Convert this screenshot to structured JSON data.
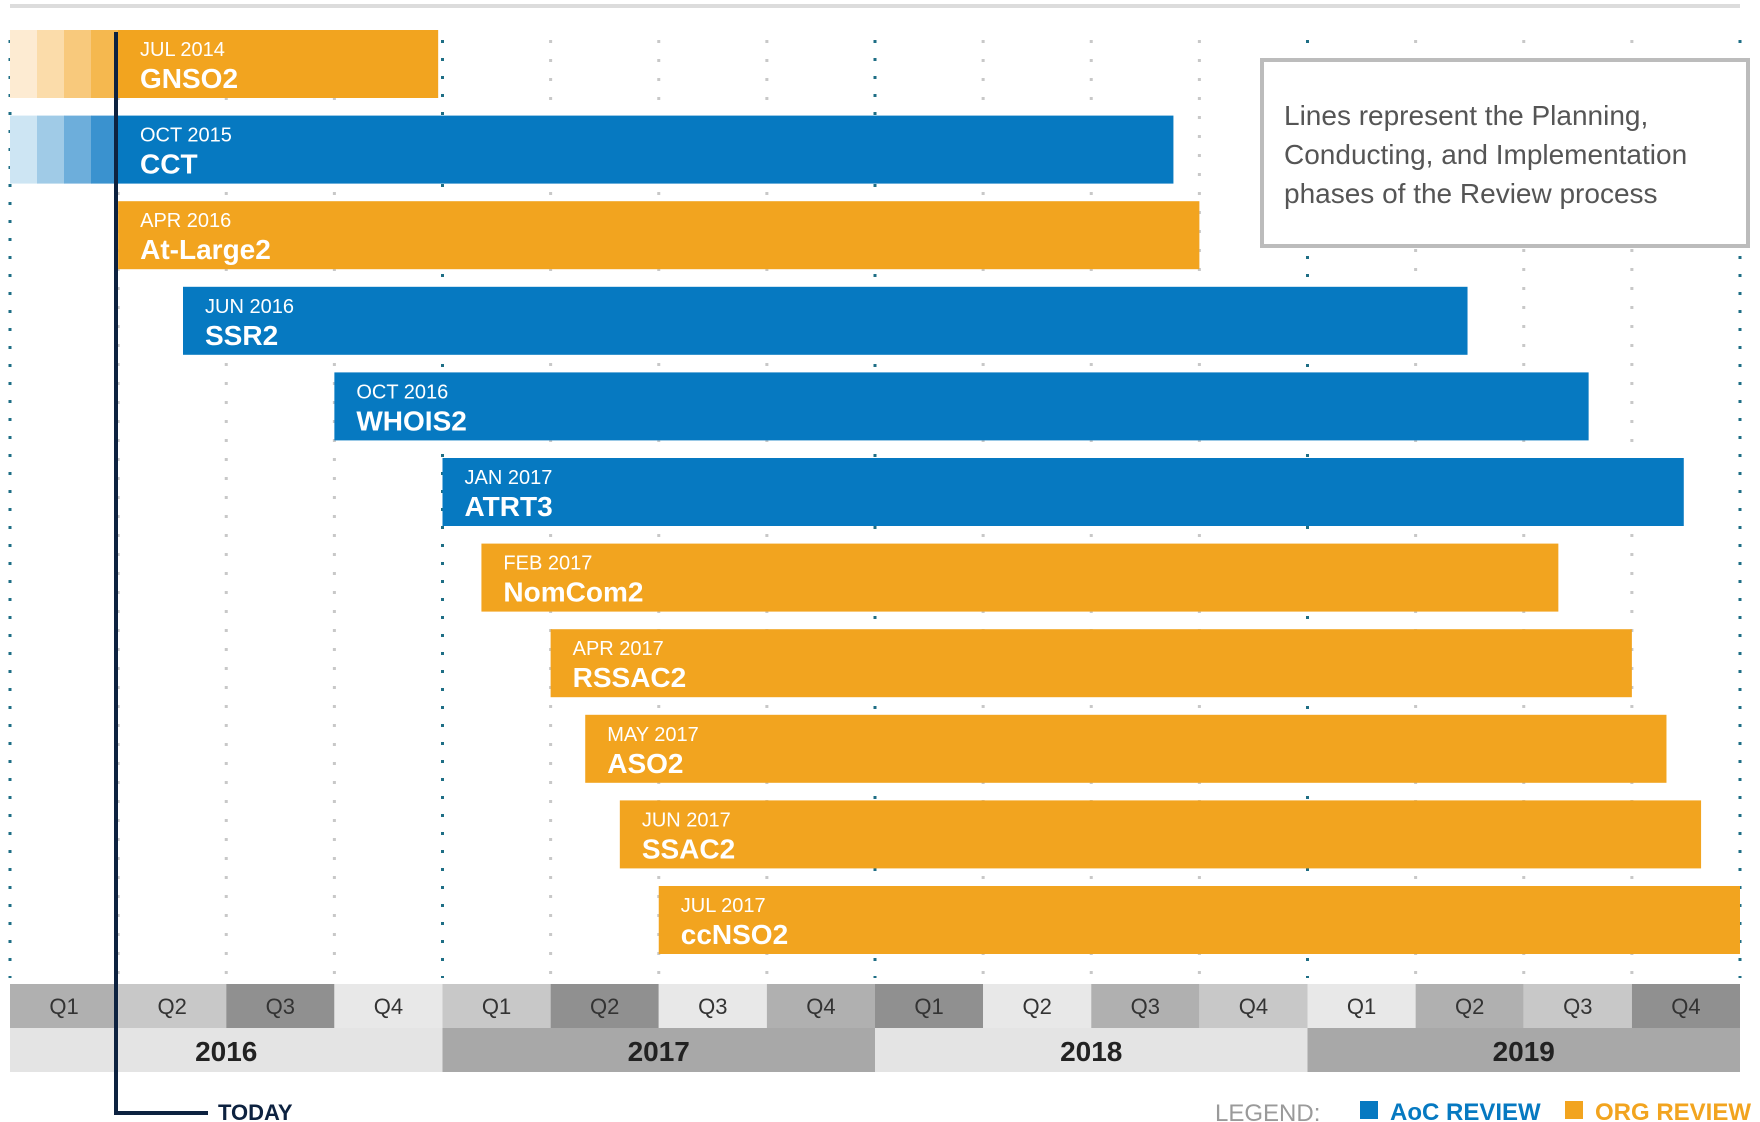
{
  "chart_data": {
    "type": "gantt",
    "note": "Lines represent the Planning, Conducting, and Implementation phases of the Review process",
    "today_label": "TODAY",
    "today_x": 2016.05,
    "x_range": [
      2016.0,
      2020.0
    ],
    "quarters": [
      "Q1",
      "Q2",
      "Q3",
      "Q4",
      "Q1",
      "Q2",
      "Q3",
      "Q4",
      "Q1",
      "Q2",
      "Q3",
      "Q4",
      "Q1",
      "Q2",
      "Q3",
      "Q4"
    ],
    "years": [
      "2016",
      "2017",
      "2018",
      "2019"
    ],
    "legend": {
      "title": "LEGEND:",
      "items": [
        {
          "label": "AoC REVIEW",
          "color": "#0679c1"
        },
        {
          "label": "ORG REVIEW",
          "color": "#f2a41f"
        }
      ]
    },
    "reviews": [
      {
        "name": "GNSO2",
        "start_label": "JUL 2014",
        "type": "org",
        "start": 2014.5,
        "end": 2016.99,
        "fade": true
      },
      {
        "name": "CCT",
        "start_label": "OCT 2015",
        "type": "aoc",
        "start": 2015.75,
        "end": 2018.69,
        "fade": true
      },
      {
        "name": "At-Large2",
        "start_label": "APR 2016",
        "type": "org",
        "start": 2016.25,
        "end": 2018.75
      },
      {
        "name": "SSR2",
        "start_label": "JUN 2016",
        "type": "aoc",
        "start": 2016.4,
        "end": 2019.37
      },
      {
        "name": "WHOIS2",
        "start_label": "OCT 2016",
        "type": "aoc",
        "start": 2016.75,
        "end": 2019.65
      },
      {
        "name": "ATRT3",
        "start_label": "JAN 2017",
        "type": "aoc",
        "start": 2017.0,
        "end": 2019.87
      },
      {
        "name": "NomCom2",
        "start_label": "FEB 2017",
        "type": "org",
        "start": 2017.09,
        "end": 2019.58
      },
      {
        "name": "RSSAC2",
        "start_label": "APR 2017",
        "type": "org",
        "start": 2017.25,
        "end": 2019.75
      },
      {
        "name": "ASO2",
        "start_label": "MAY 2017",
        "type": "org",
        "start": 2017.33,
        "end": 2019.83
      },
      {
        "name": "SSAC2",
        "start_label": "JUN 2017",
        "type": "org",
        "start": 2017.41,
        "end": 2019.91
      },
      {
        "name": "ccNSO2",
        "start_label": "JUL 2017",
        "type": "org",
        "start": 2017.5,
        "end": 2020.0
      }
    ]
  }
}
